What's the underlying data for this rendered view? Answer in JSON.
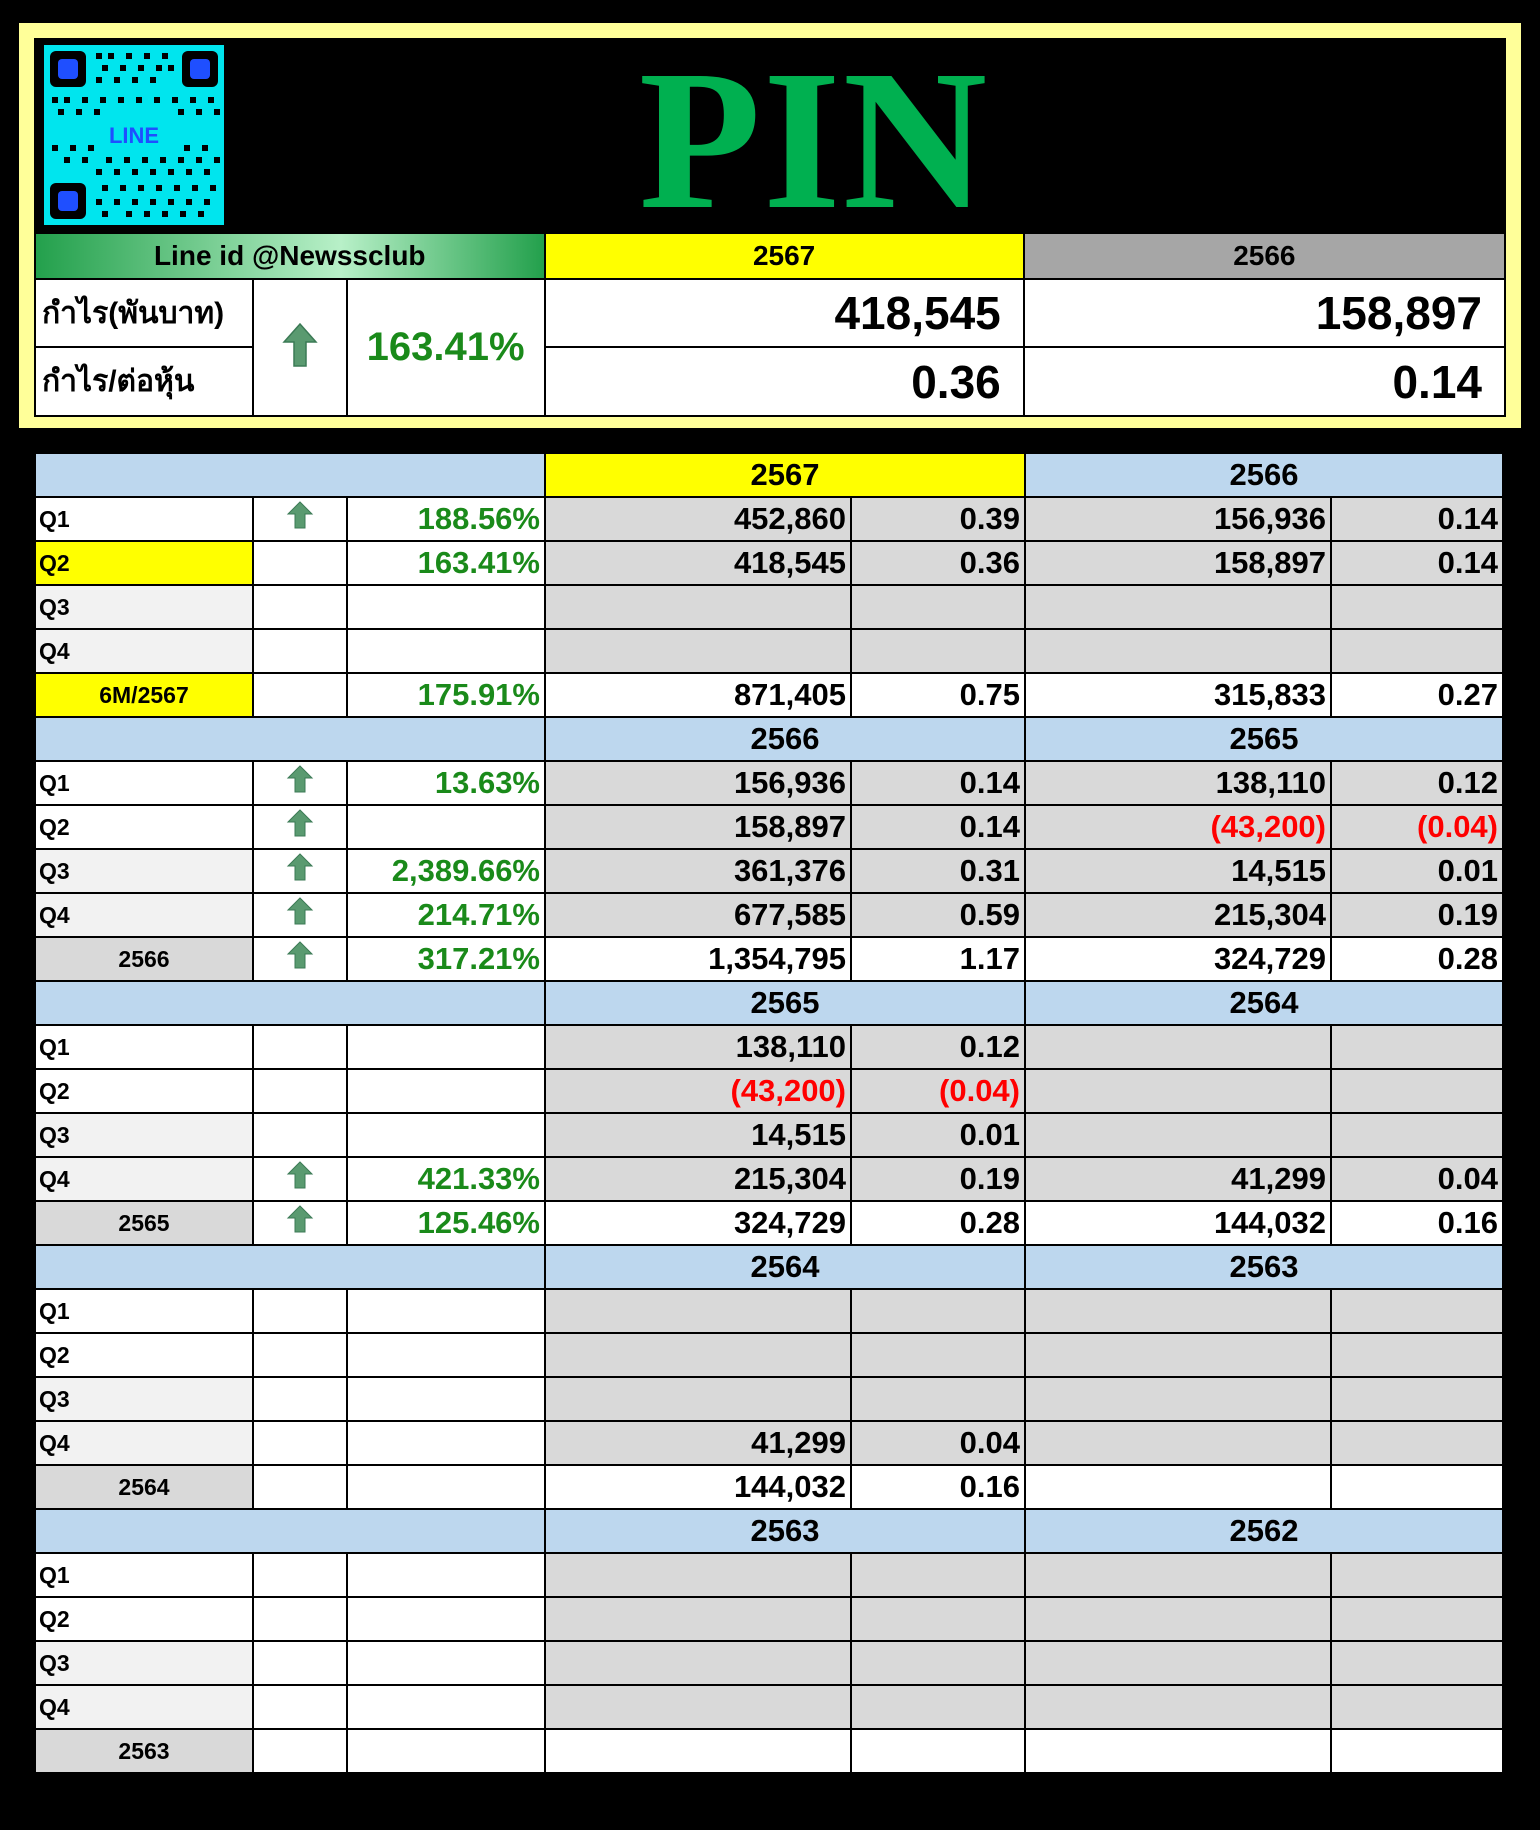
{
  "header": {
    "title": "PIN",
    "qr_label": "LINE",
    "line_id": "Line id @Newssclub",
    "col_year1": "2567",
    "col_year2": "2566",
    "row1_label": "กำไร(พันบาท)",
    "row2_label": "กำไร/ต่อหุ้น",
    "change_pct": "163.41%",
    "profit_y1": "418,545",
    "profit_y2": "158,897",
    "eps_y1": "0.36",
    "eps_y2": "0.14"
  },
  "colors": {
    "green_title": "#00b050",
    "yellow": "#ffff00",
    "section_blue": "#bdd7ee",
    "negative": "#ff0000",
    "positive": "#1a8a1a"
  },
  "icons": {
    "up_arrow": "up-arrow-icon"
  },
  "sections": [
    {
      "year_a": "2567",
      "year_b": "2566",
      "rows": [
        {
          "label": "Q1",
          "arrow": true,
          "pct": "188.56%",
          "a_profit": "452,860",
          "a_eps": "0.39",
          "b_profit": "156,936",
          "b_eps": "0.14"
        },
        {
          "label": "Q2",
          "arrow": false,
          "pct": "163.41%",
          "a_profit": "418,545",
          "a_eps": "0.36",
          "b_profit": "158,897",
          "b_eps": "0.14"
        },
        {
          "label": "Q3",
          "arrow": false,
          "pct": "",
          "a_profit": "",
          "a_eps": "",
          "b_profit": "",
          "b_eps": ""
        },
        {
          "label": "Q4",
          "arrow": false,
          "pct": "",
          "a_profit": "",
          "a_eps": "",
          "b_profit": "",
          "b_eps": ""
        }
      ],
      "total": {
        "label": "6M/2567",
        "arrow": false,
        "pct": "175.91%",
        "a_profit": "871,405",
        "a_eps": "0.75",
        "b_profit": "315,833",
        "b_eps": "0.27"
      }
    },
    {
      "year_a": "2566",
      "year_b": "2565",
      "rows": [
        {
          "label": "Q1",
          "arrow": true,
          "pct": "13.63%",
          "a_profit": "156,936",
          "a_eps": "0.14",
          "b_profit": "138,110",
          "b_eps": "0.12"
        },
        {
          "label": "Q2",
          "arrow": true,
          "pct": "",
          "a_profit": "158,897",
          "a_eps": "0.14",
          "b_profit": "(43,200)",
          "b_eps": "(0.04)"
        },
        {
          "label": "Q3",
          "arrow": true,
          "pct": "2,389.66%",
          "a_profit": "361,376",
          "a_eps": "0.31",
          "b_profit": "14,515",
          "b_eps": "0.01"
        },
        {
          "label": "Q4",
          "arrow": true,
          "pct": "214.71%",
          "a_profit": "677,585",
          "a_eps": "0.59",
          "b_profit": "215,304",
          "b_eps": "0.19"
        }
      ],
      "total": {
        "label": "2566",
        "arrow": true,
        "pct": "317.21%",
        "a_profit": "1,354,795",
        "a_eps": "1.17",
        "b_profit": "324,729",
        "b_eps": "0.28"
      }
    },
    {
      "year_a": "2565",
      "year_b": "2564",
      "rows": [
        {
          "label": "Q1",
          "arrow": false,
          "pct": "",
          "a_profit": "138,110",
          "a_eps": "0.12",
          "b_profit": "",
          "b_eps": ""
        },
        {
          "label": "Q2",
          "arrow": false,
          "pct": "",
          "a_profit": "(43,200)",
          "a_eps": "(0.04)",
          "b_profit": "",
          "b_eps": ""
        },
        {
          "label": "Q3",
          "arrow": false,
          "pct": "",
          "a_profit": "14,515",
          "a_eps": "0.01",
          "b_profit": "",
          "b_eps": ""
        },
        {
          "label": "Q4",
          "arrow": true,
          "pct": "421.33%",
          "a_profit": "215,304",
          "a_eps": "0.19",
          "b_profit": "41,299",
          "b_eps": "0.04"
        }
      ],
      "total": {
        "label": "2565",
        "arrow": true,
        "pct": "125.46%",
        "a_profit": "324,729",
        "a_eps": "0.28",
        "b_profit": "144,032",
        "b_eps": "0.16"
      }
    },
    {
      "year_a": "2564",
      "year_b": "2563",
      "rows": [
        {
          "label": "Q1",
          "arrow": false,
          "pct": "",
          "a_profit": "",
          "a_eps": "",
          "b_profit": "",
          "b_eps": ""
        },
        {
          "label": "Q2",
          "arrow": false,
          "pct": "",
          "a_profit": "",
          "a_eps": "",
          "b_profit": "",
          "b_eps": ""
        },
        {
          "label": "Q3",
          "arrow": false,
          "pct": "",
          "a_profit": "",
          "a_eps": "",
          "b_profit": "",
          "b_eps": ""
        },
        {
          "label": "Q4",
          "arrow": false,
          "pct": "",
          "a_profit": "41,299",
          "a_eps": "0.04",
          "b_profit": "",
          "b_eps": ""
        }
      ],
      "total": {
        "label": "2564",
        "arrow": false,
        "pct": "",
        "a_profit": "144,032",
        "a_eps": "0.16",
        "b_profit": "",
        "b_eps": ""
      }
    },
    {
      "year_a": "2563",
      "year_b": "2562",
      "rows": [
        {
          "label": "Q1",
          "arrow": false,
          "pct": "",
          "a_profit": "",
          "a_eps": "",
          "b_profit": "",
          "b_eps": ""
        },
        {
          "label": "Q2",
          "arrow": false,
          "pct": "",
          "a_profit": "",
          "a_eps": "",
          "b_profit": "",
          "b_eps": ""
        },
        {
          "label": "Q3",
          "arrow": false,
          "pct": "",
          "a_profit": "",
          "a_eps": "",
          "b_profit": "",
          "b_eps": ""
        },
        {
          "label": "Q4",
          "arrow": false,
          "pct": "",
          "a_profit": "",
          "a_eps": "",
          "b_profit": "",
          "b_eps": ""
        }
      ],
      "total": {
        "label": "2563",
        "arrow": false,
        "pct": "",
        "a_profit": "",
        "a_eps": "",
        "b_profit": "",
        "b_eps": ""
      }
    }
  ]
}
